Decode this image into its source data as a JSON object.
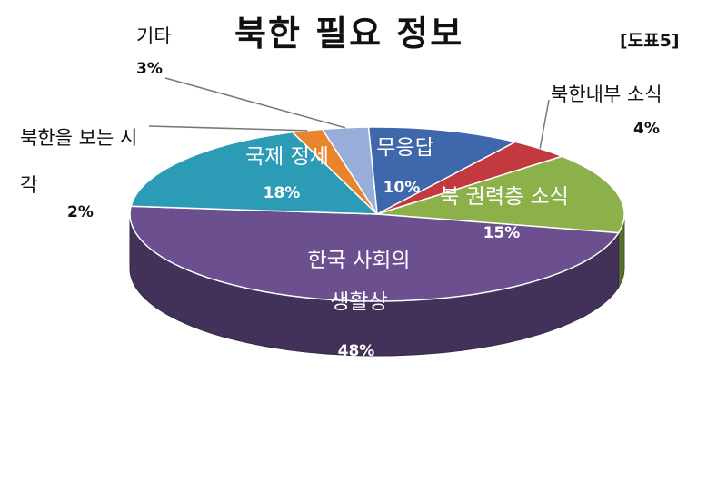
{
  "header": {
    "title": "북한 필요 정보",
    "figure_tag": "[도표5]"
  },
  "chart_data": {
    "type": "pie",
    "title": "북한 필요 정보",
    "slices": [
      {
        "label": "무응답",
        "value": 10,
        "value_label": "10%",
        "color": "#3f67ab"
      },
      {
        "label": "북한내부 소식",
        "value": 4,
        "value_label": "4%",
        "color": "#c2393f"
      },
      {
        "label": "북 권력층 소식",
        "value": 15,
        "value_label": "15%",
        "color": "#8db14a"
      },
      {
        "label": "한국 사회의 생활상",
        "value": 48,
        "value_label": "48%",
        "color": "#6b4f8f"
      },
      {
        "label": "국제 정세",
        "value": 18,
        "value_label": "18%",
        "color": "#2c9bb5"
      },
      {
        "label": "북한을 보는 시각",
        "value": 2,
        "value_label": "2%",
        "color": "#e8842b"
      },
      {
        "label": "기타",
        "value": 3,
        "value_label": "3%",
        "color": "#97aedb"
      }
    ]
  }
}
